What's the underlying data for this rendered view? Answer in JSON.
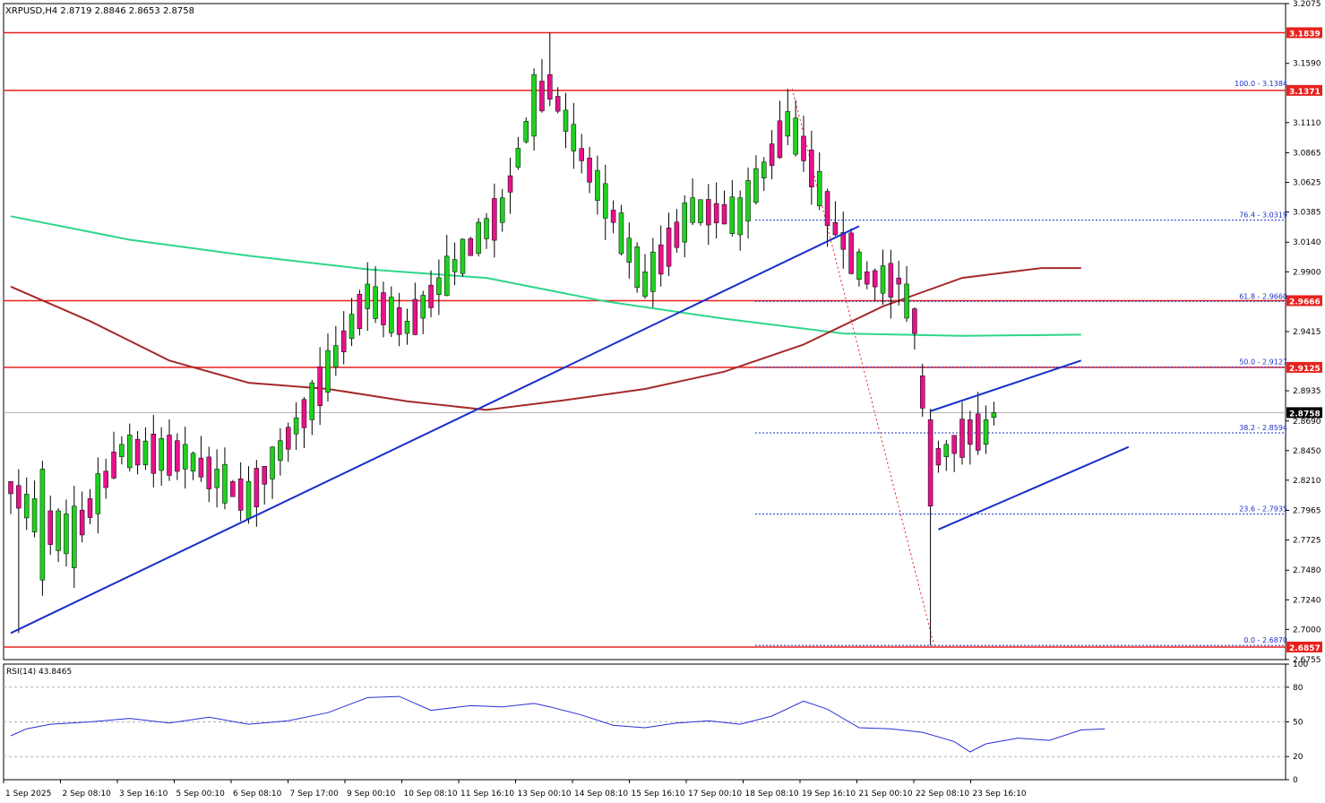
{
  "chart_data": {
    "type": "candlestick",
    "symbol": "XRPUSD,H4",
    "ohlc": {
      "open": "2.8719",
      "high": "2.8846",
      "low": "2.8653",
      "close": "2.8758"
    },
    "header": "XRPUSD,H4  2.8719 2.8846 2.8653 2.8758",
    "ylim": [
      2.6755,
      3.2075
    ],
    "price_ticks": [
      "3.2075",
      "3.1590",
      "3.1110",
      "3.0865",
      "3.0625",
      "3.0385",
      "3.0140",
      "2.9900",
      "2.9415",
      "2.8935",
      "2.8690",
      "2.8450",
      "2.8210",
      "2.7965",
      "2.7725",
      "2.7480",
      "2.7240",
      "2.7000",
      "2.6755"
    ],
    "x_labels": [
      "1 Sep 2025",
      "2 Sep 08:10",
      "3 Sep 16:10",
      "5 Sep 00:10",
      "6 Sep 08:10",
      "7 Sep 17:00",
      "9 Sep 00:10",
      "10 Sep 08:10",
      "11 Sep 16:10",
      "13 Sep 00:10",
      "14 Sep 08:10",
      "15 Sep 16:10",
      "17 Sep 00:10",
      "18 Sep 08:10",
      "19 Sep 16:10",
      "21 Sep 00:10",
      "22 Sep 08:10",
      "23 Sep 16:10"
    ],
    "candle_count": 125,
    "candle_anchors": [
      {
        "i": 0,
        "o": 2.82,
        "c": 2.81
      },
      {
        "i": 4,
        "o": 2.74,
        "c": 2.83
      },
      {
        "i": 8,
        "o": 2.75,
        "c": 2.8
      },
      {
        "i": 14,
        "o": 2.84,
        "c": 2.85
      },
      {
        "i": 22,
        "o": 2.83,
        "c": 2.85
      },
      {
        "i": 30,
        "o": 2.79,
        "c": 2.82
      },
      {
        "i": 38,
        "o": 2.87,
        "c": 2.9
      },
      {
        "i": 45,
        "o": 2.96,
        "c": 2.98
      },
      {
        "i": 50,
        "o": 2.94,
        "c": 2.95
      },
      {
        "i": 56,
        "o": 2.99,
        "c": 3.0
      },
      {
        "i": 62,
        "o": 3.03,
        "c": 3.05
      },
      {
        "i": 66,
        "o": 3.1,
        "c": 3.15
      },
      {
        "i": 68,
        "o": 3.15,
        "c": 3.13
      },
      {
        "i": 72,
        "o": 3.09,
        "c": 3.08
      },
      {
        "i": 76,
        "o": 3.04,
        "c": 3.03
      },
      {
        "i": 80,
        "o": 2.97,
        "c": 2.99
      },
      {
        "i": 86,
        "o": 3.03,
        "c": 3.05
      },
      {
        "i": 92,
        "o": 3.02,
        "c": 3.05
      },
      {
        "i": 98,
        "o": 3.1,
        "c": 3.12
      },
      {
        "i": 100,
        "o": 3.1,
        "c": 3.08
      },
      {
        "i": 104,
        "o": 3.03,
        "c": 3.02
      },
      {
        "i": 108,
        "o": 2.99,
        "c": 2.98
      },
      {
        "i": 112,
        "o": 2.985,
        "c": 2.98
      },
      {
        "i": 114,
        "o": 2.96,
        "c": 2.94
      },
      {
        "i": 116,
        "o": 2.87,
        "c": 2.8
      },
      {
        "i": 118,
        "o": 2.84,
        "c": 2.85
      },
      {
        "i": 121,
        "o": 2.87,
        "c": 2.85
      },
      {
        "i": 123,
        "o": 2.85,
        "c": 2.87
      },
      {
        "i": 124,
        "o": 2.8719,
        "c": 2.8758,
        "h": 2.8846,
        "l": 2.8653
      }
    ],
    "horizontal_levels": [
      {
        "price": 3.1839,
        "label": "3.1839",
        "color": "#e8211d"
      },
      {
        "price": 3.1371,
        "label": "3.1371",
        "color": "#e8211d"
      },
      {
        "price": 2.9666,
        "label": "2.9666",
        "color": "#e8211d"
      },
      {
        "price": 2.9125,
        "label": "2.9125",
        "color": "#e8211d"
      },
      {
        "price": 2.6857,
        "label": "2.6857",
        "color": "#e8211d"
      }
    ],
    "current_price": {
      "price": 2.8758,
      "label": "2.8758"
    },
    "fibonacci": [
      {
        "label": "100.0 - 3.1384",
        "price": 3.1384
      },
      {
        "label": "76.4 - 3.0319",
        "price": 3.0319
      },
      {
        "label": "61.8 - 2.9660",
        "price": 2.966
      },
      {
        "label": "50.0 - 2.9127",
        "price": 2.9127
      },
      {
        "label": "38.2 - 2.8594",
        "price": 2.8594
      },
      {
        "label": "23.6 - 2.7935",
        "price": 2.7935
      },
      {
        "label": "0.0 - 2.6870",
        "price": 2.687
      }
    ],
    "trendlines": [
      {
        "from": {
          "i": 0,
          "price": 2.697
        },
        "to": {
          "i": 107,
          "price": 3.027
        },
        "color": "#1a2fc9"
      },
      {
        "from": {
          "i": 116,
          "price": 2.877
        },
        "to": {
          "i": 135,
          "price": 2.918
        },
        "color": "#1a2fc9"
      },
      {
        "from": {
          "i": 117,
          "price": 2.781
        },
        "to": {
          "i": 141,
          "price": 2.848
        },
        "color": "#1a2fc9"
      }
    ],
    "moving_averages": [
      {
        "color": "#2dd68a",
        "points": [
          [
            0,
            3.035
          ],
          [
            15,
            3.016
          ],
          [
            30,
            3.003
          ],
          [
            45,
            2.992
          ],
          [
            60,
            2.985
          ],
          [
            75,
            2.966
          ],
          [
            90,
            2.952
          ],
          [
            105,
            2.94
          ],
          [
            120,
            2.938
          ],
          [
            135,
            2.939
          ]
        ]
      },
      {
        "color": "#a52a2a",
        "points": [
          [
            0,
            2.978
          ],
          [
            10,
            2.95
          ],
          [
            20,
            2.918
          ],
          [
            30,
            2.9
          ],
          [
            40,
            2.895
          ],
          [
            50,
            2.885
          ],
          [
            60,
            2.878
          ],
          [
            70,
            2.886
          ],
          [
            80,
            2.895
          ],
          [
            90,
            2.909
          ],
          [
            100,
            2.931
          ],
          [
            110,
            2.962
          ],
          [
            120,
            2.985
          ],
          [
            130,
            2.993
          ],
          [
            135,
            2.993
          ]
        ]
      }
    ],
    "rsi": {
      "label": "RSI(14) 43.8465",
      "ylim": [
        0,
        100
      ],
      "ticks": [
        "100",
        "80",
        "50",
        "20",
        "0"
      ],
      "levels": [
        80,
        50,
        20
      ],
      "points": [
        [
          0,
          38
        ],
        [
          2,
          44
        ],
        [
          5,
          48
        ],
        [
          10,
          50
        ],
        [
          15,
          53
        ],
        [
          20,
          49
        ],
        [
          25,
          54
        ],
        [
          30,
          48
        ],
        [
          35,
          51
        ],
        [
          40,
          58
        ],
        [
          45,
          71
        ],
        [
          49,
          72
        ],
        [
          53,
          60
        ],
        [
          58,
          64
        ],
        [
          62,
          63
        ],
        [
          66,
          66
        ],
        [
          68,
          63
        ],
        [
          72,
          56
        ],
        [
          76,
          47
        ],
        [
          80,
          45
        ],
        [
          84,
          49
        ],
        [
          88,
          51
        ],
        [
          92,
          48
        ],
        [
          96,
          55
        ],
        [
          100,
          68
        ],
        [
          103,
          61
        ],
        [
          107,
          45
        ],
        [
          111,
          44
        ],
        [
          115,
          41
        ],
        [
          119,
          33
        ],
        [
          121,
          24
        ],
        [
          123,
          31
        ],
        [
          127,
          36
        ],
        [
          131,
          34
        ],
        [
          135,
          43
        ],
        [
          138,
          44
        ]
      ],
      "color": "#2a2fd6"
    },
    "colors": {
      "bull": "#1fd11f",
      "bear": "#e8118b",
      "wick": "#000000",
      "grid": "#c0c0c0"
    }
  }
}
